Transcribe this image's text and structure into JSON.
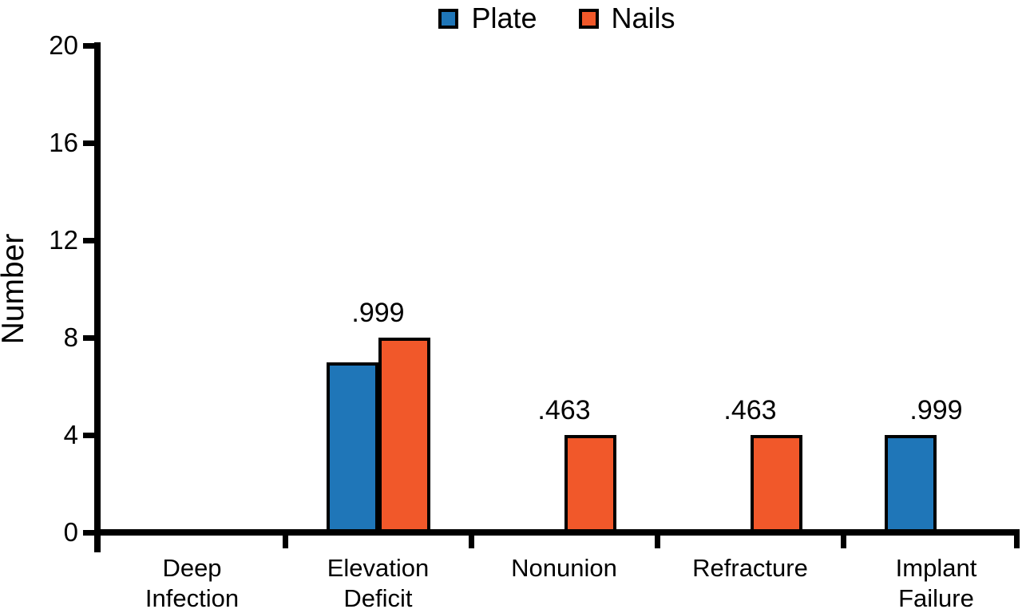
{
  "chart_data": {
    "type": "bar",
    "title": "",
    "xlabel": "",
    "ylabel": "Number",
    "ylim": [
      0,
      20
    ],
    "yticks": [
      0,
      4,
      8,
      12,
      16,
      20
    ],
    "grid": false,
    "legend_position": "top-center",
    "background": "#ffffff",
    "axis_color": "#000000",
    "categories": [
      "Deep Infection",
      "Elevation Deficit",
      "Nonunion",
      "Refracture",
      "Implant Failure"
    ],
    "category_label_lines": [
      [
        "Deep",
        "Infection"
      ],
      [
        "Elevation",
        "Deficit"
      ],
      [
        "Nonunion"
      ],
      [
        "Refracture"
      ],
      [
        "Implant",
        "Failure"
      ]
    ],
    "series": [
      {
        "name": "Plate",
        "color": "#1f76b8",
        "values": [
          0,
          7,
          0,
          0,
          4
        ]
      },
      {
        "name": "Nails",
        "color": "#f1582a",
        "values": [
          0,
          8,
          4,
          4,
          0
        ]
      }
    ],
    "annotations": [
      {
        "category_index": 1,
        "text": ".999"
      },
      {
        "category_index": 2,
        "text": ".463"
      },
      {
        "category_index": 3,
        "text": ".463"
      },
      {
        "category_index": 4,
        "text": ".999"
      }
    ]
  }
}
